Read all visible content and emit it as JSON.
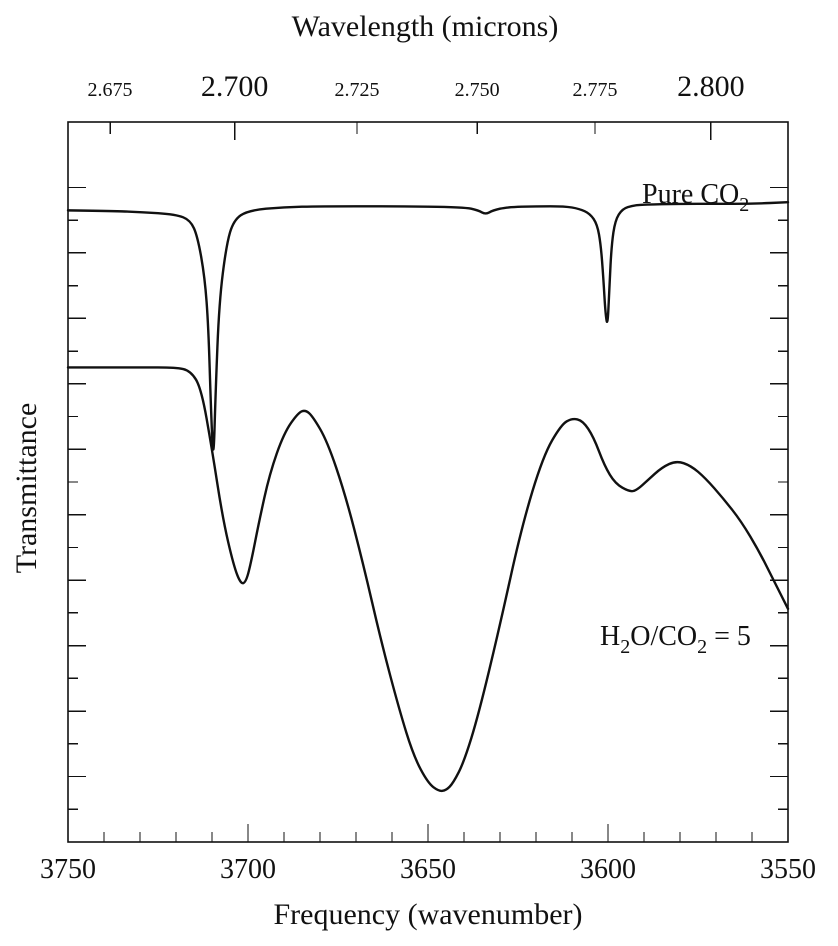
{
  "chart_data": {
    "type": "line",
    "title": "",
    "xlabel": "Frequency (wavenumber)",
    "ylabel": "Transmittance",
    "top_xlabel": "Wavelength (microns)",
    "xlim": [
      3750,
      3550
    ],
    "x_reversed": true,
    "ylim": [
      0,
      8.8
    ],
    "x_ticks": [
      {
        "label": "3750",
        "value": 3750
      },
      {
        "label": "3700",
        "value": 3700
      },
      {
        "label": "3650",
        "value": 3650
      },
      {
        "label": "3600",
        "value": 3600
      },
      {
        "label": "3550",
        "value": 3550
      }
    ],
    "top_ticks_minor": [
      {
        "label": "2.675",
        "value": 2.675
      },
      {
        "label": "2.725",
        "value": 2.725
      },
      {
        "label": "2.750",
        "value": 2.75
      },
      {
        "label": "2.775",
        "value": 2.775
      }
    ],
    "top_ticks_major": [
      {
        "label": "2.700",
        "value": 2.7
      },
      {
        "label": "2.800",
        "value": 2.8
      }
    ],
    "y_tick_labels_shown": false,
    "grid": false,
    "legend": "none",
    "series": [
      {
        "name": "Pure CO2",
        "label": {
          "main": "Pure CO",
          "sub": "2"
        },
        "x": [
          3750,
          3740,
          3730,
          3720,
          3716,
          3714,
          3712,
          3711,
          3710.3,
          3709.6,
          3709,
          3708,
          3706,
          3704,
          3700,
          3690,
          3680,
          3660,
          3640,
          3636,
          3634,
          3632,
          3628,
          3620,
          3612,
          3608,
          3605,
          3603,
          3602,
          3601.3,
          3600.7,
          3600.1,
          3599.6,
          3599,
          3598,
          3596,
          3593,
          3590,
          3580,
          3570,
          3560,
          3550
        ],
        "values": [
          7.72,
          7.715,
          7.7,
          7.67,
          7.6,
          7.4,
          6.9,
          6.3,
          5.3,
          4.6,
          5.5,
          6.6,
          7.3,
          7.6,
          7.72,
          7.76,
          7.77,
          7.77,
          7.76,
          7.72,
          7.67,
          7.72,
          7.76,
          7.77,
          7.77,
          7.74,
          7.68,
          7.55,
          7.3,
          6.9,
          6.45,
          6.3,
          6.8,
          7.3,
          7.6,
          7.74,
          7.78,
          7.79,
          7.8,
          7.8,
          7.8,
          7.82
        ]
      },
      {
        "name": "H2O/CO2 = 5",
        "label": {
          "a": "H",
          "a_sub": "2",
          "b": "O/CO",
          "b_sub": "2",
          "c": " = 5"
        },
        "x": [
          3750,
          3740,
          3730,
          3720,
          3716,
          3713,
          3710,
          3707,
          3704,
          3702,
          3700.5,
          3699,
          3697,
          3694,
          3690,
          3686,
          3684,
          3682,
          3678,
          3673,
          3668,
          3663,
          3658,
          3654,
          3650,
          3647,
          3645,
          3643,
          3640,
          3636,
          3630,
          3624,
          3618,
          3613,
          3610,
          3607,
          3604,
          3601,
          3598,
          3594,
          3592,
          3589,
          3585,
          3581,
          3577,
          3573,
          3568,
          3563,
          3558,
          3554,
          3550
        ],
        "values": [
          5.8,
          5.8,
          5.8,
          5.8,
          5.76,
          5.55,
          4.8,
          3.95,
          3.38,
          3.15,
          3.18,
          3.45,
          3.9,
          4.5,
          5.0,
          5.25,
          5.28,
          5.2,
          4.9,
          4.25,
          3.4,
          2.45,
          1.62,
          1.05,
          0.72,
          0.62,
          0.63,
          0.72,
          0.98,
          1.55,
          2.65,
          3.85,
          4.72,
          5.1,
          5.18,
          5.15,
          4.95,
          4.6,
          4.38,
          4.28,
          4.3,
          4.42,
          4.58,
          4.66,
          4.6,
          4.45,
          4.2,
          3.92,
          3.55,
          3.2,
          2.85
        ]
      }
    ]
  }
}
